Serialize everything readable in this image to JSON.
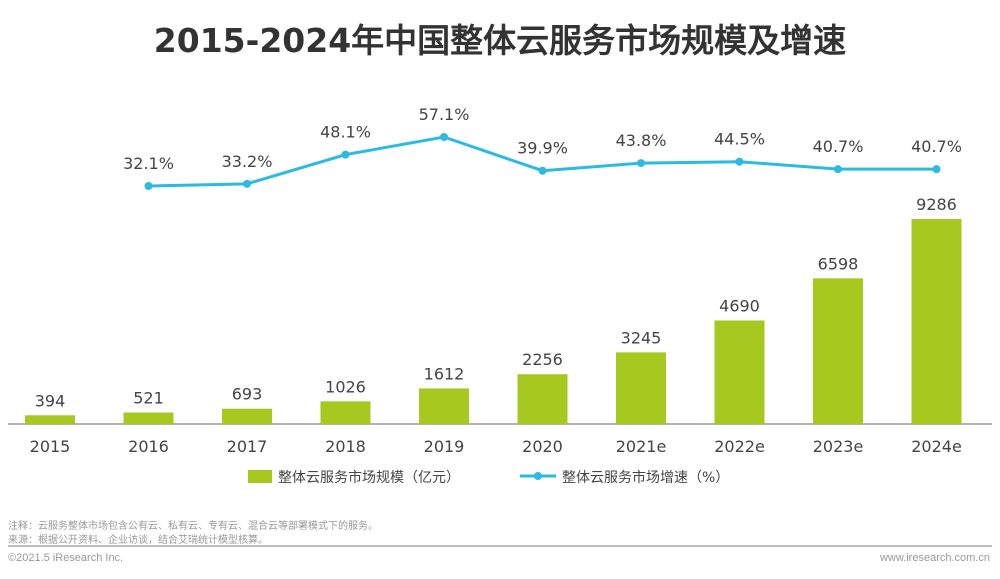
{
  "chart_data": {
    "type": "bar+line",
    "title": "2015-2024年中国整体云服务市场规模及增速",
    "categories": [
      "2015",
      "2016",
      "2017",
      "2018",
      "2019",
      "2020",
      "2021e",
      "2022e",
      "2023e",
      "2024e"
    ],
    "series": [
      {
        "name": "整体云服务市场规模（亿元）",
        "type": "bar",
        "color": "#a6c81f",
        "values": [
          394,
          521,
          693,
          1026,
          1612,
          2256,
          3245,
          4690,
          6598,
          9286
        ]
      },
      {
        "name": "整体云服务市场增速（%）",
        "type": "line",
        "color": "#2bbbe0",
        "values": [
          null,
          32.1,
          33.2,
          48.1,
          57.1,
          39.9,
          43.8,
          44.5,
          40.7,
          40.7
        ],
        "labels": [
          null,
          "32.1%",
          "33.2%",
          "48.1%",
          "57.1%",
          "39.9%",
          "43.8%",
          "44.5%",
          "40.7%",
          "40.7%"
        ]
      }
    ],
    "legend": "bottom",
    "grid": false
  },
  "footer": {
    "note": "注释：云服务整体市场包含公有云、私有云、专有云、混合云等部署模式下的服务。",
    "source": "来源：根据公开资料、企业访谈，结合艾瑞统计模型核算。",
    "copyright": "©2021.5 iResearch Inc.",
    "website": "www.iresearch.com.cn"
  }
}
